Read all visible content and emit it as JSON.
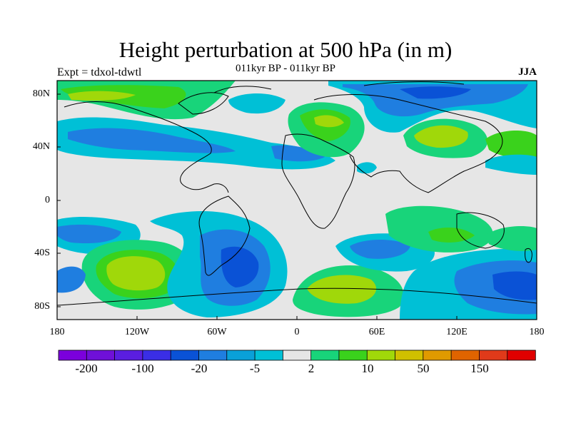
{
  "title": "Height perturbation at 500 hPa (in m)",
  "subtitle": "011kyr BP - 011kyr BP",
  "left_label": "Expt = tdxol-tdwtl",
  "season": "JJA",
  "chart_data": {
    "type": "heatmap",
    "projection": "cylindrical-equidistant",
    "variable": "500 hPa height perturbation",
    "units": "m",
    "lon_range": [
      -180,
      180
    ],
    "lat_range": [
      -90,
      90
    ],
    "lat_ticks": [
      "80N",
      "40N",
      "0",
      "40S",
      "80S"
    ],
    "lon_ticks": [
      "180",
      "120W",
      "60W",
      "0",
      "60E",
      "120E",
      "180"
    ],
    "colorbar": {
      "colors": [
        "#7b00dc",
        "#6f10d8",
        "#5a1ee0",
        "#3a2ee6",
        "#0a52d6",
        "#1f7ee0",
        "#0aa0d8",
        "#00c0d6",
        "#e6e6e6",
        "#18d47a",
        "#3ad21c",
        "#a0d80a",
        "#d0c000",
        "#e09a00",
        "#e06400",
        "#e03a1a",
        "#e00000"
      ],
      "labels": [
        "-200",
        "-100",
        "-20",
        "-5",
        "2",
        "10",
        "50",
        "150"
      ]
    },
    "regions": [
      {
        "sign": "negative",
        "lon": [
          -170,
          -10
        ],
        "lat": [
          10,
          55
        ],
        "peak": "light blue/blue"
      },
      {
        "sign": "positive",
        "lon": [
          -100,
          0
        ],
        "lat": [
          55,
          85
        ],
        "peak": "green"
      },
      {
        "sign": "positive",
        "lon": [
          20,
          70
        ],
        "lat": [
          45,
          75
        ],
        "peak": "yellow-green"
      },
      {
        "sign": "negative",
        "lon": [
          30,
          170
        ],
        "lat": [
          50,
          88
        ],
        "peak": "blue"
      },
      {
        "sign": "positive",
        "lon": [
          80,
          160
        ],
        "lat": [
          30,
          60
        ],
        "peak": "yellow-green"
      },
      {
        "sign": "positive",
        "lon": [
          -160,
          -80
        ],
        "lat": [
          -80,
          -30
        ],
        "peak": "yellow-green"
      },
      {
        "sign": "negative",
        "lon": [
          -80,
          0
        ],
        "lat": [
          -80,
          -25
        ],
        "peak": "blue"
      },
      {
        "sign": "positive",
        "lon": [
          0,
          80
        ],
        "lat": [
          -80,
          -45
        ],
        "peak": "yellow-green"
      },
      {
        "sign": "negative",
        "lon": [
          20,
          80
        ],
        "lat": [
          -55,
          -25
        ],
        "peak": "light blue"
      },
      {
        "sign": "negative",
        "lon": [
          110,
          180
        ],
        "lat": [
          -80,
          -30
        ],
        "peak": "blue"
      }
    ]
  }
}
